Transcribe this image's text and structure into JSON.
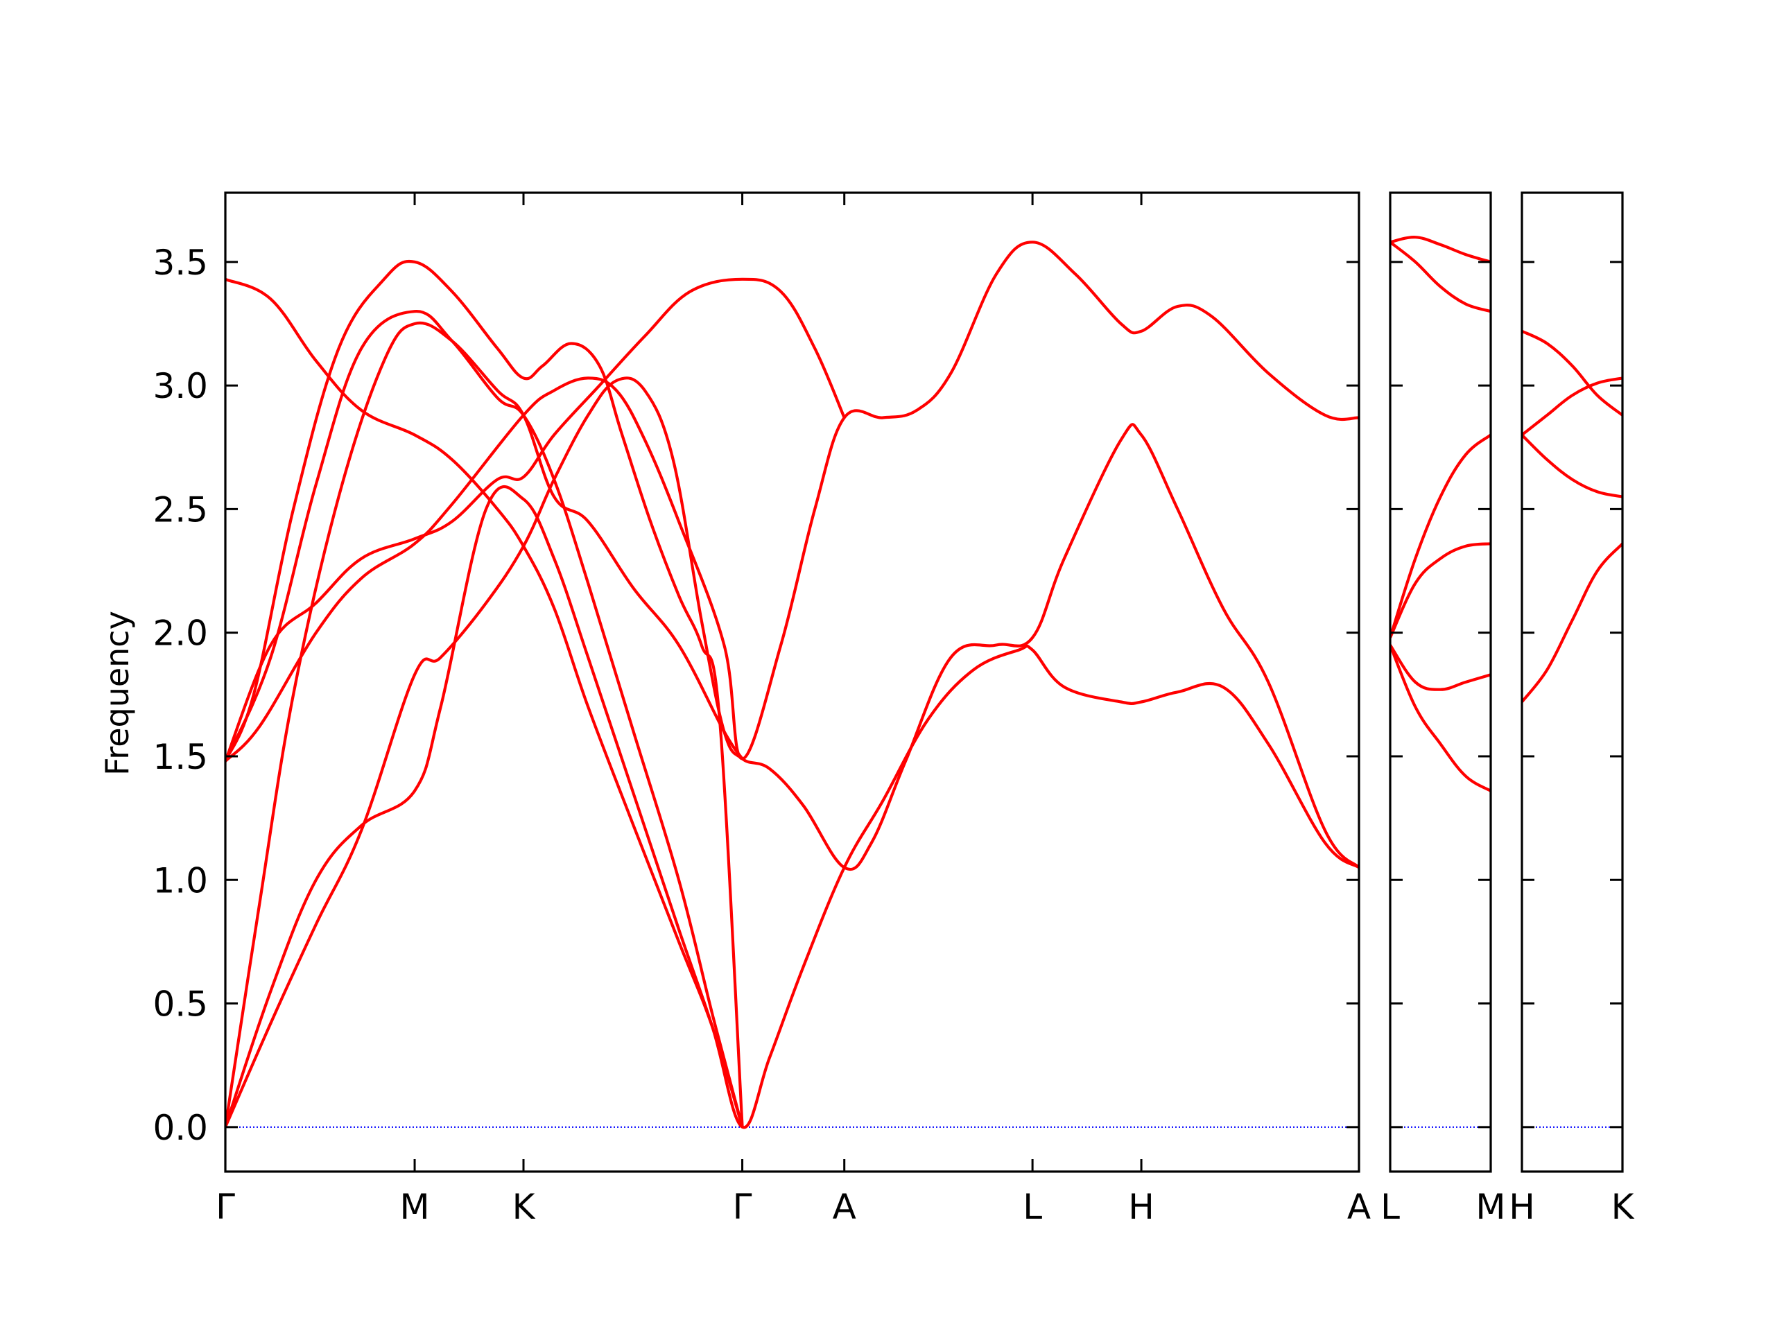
{
  "chart_data": {
    "type": "line",
    "title": "",
    "xlabel": "",
    "ylabel": "Frequency",
    "ylim": [
      -0.18,
      3.78
    ],
    "yticks": [
      "0.0",
      "0.5",
      "1.0",
      "1.5",
      "2.0",
      "2.5",
      "3.0",
      "3.5"
    ],
    "grid": false,
    "legend": "none",
    "colors": {
      "bands": "#ff0000",
      "zero_line": "#0000ff",
      "axes": "#000000"
    },
    "panels": [
      {
        "xlim": [
          0,
          1000
        ],
        "ticks": [
          {
            "x": 0,
            "label": "Γ"
          },
          {
            "x": 167,
            "label": "M"
          },
          {
            "x": 263,
            "label": "K"
          },
          {
            "x": 456,
            "label": "Γ"
          },
          {
            "x": 546,
            "label": "A"
          },
          {
            "x": 712,
            "label": "L"
          },
          {
            "x": 808,
            "label": "H"
          },
          {
            "x": 1000,
            "label": "A"
          }
        ],
        "bands": [
          [
            [
              0,
              0
            ],
            [
              40,
              0.42
            ],
            [
              80,
              0.82
            ],
            [
              120,
              1.2
            ],
            [
              167,
              1.83
            ],
            [
              190,
              1.9
            ],
            [
              230,
              2.12
            ],
            [
              263,
              2.35
            ],
            [
              290,
              2.62
            ],
            [
              320,
              2.88
            ],
            [
              345,
              3.02
            ],
            [
              370,
              2.98
            ],
            [
              395,
              2.7
            ],
            [
              420,
              2.05
            ],
            [
              440,
              1.6
            ],
            [
              456,
              1.49
            ],
            [
              480,
              1.45
            ],
            [
              510,
              1.3
            ],
            [
              546,
              1.05
            ],
            [
              570,
              1.15
            ],
            [
              600,
              1.48
            ],
            [
              640,
              1.9
            ],
            [
              680,
              1.95
            ],
            [
              712,
              1.98
            ],
            [
              740,
              2.3
            ],
            [
              790,
              2.78
            ],
            [
              808,
              2.8
            ],
            [
              840,
              2.5
            ],
            [
              880,
              2.1
            ],
            [
              920,
              1.8
            ],
            [
              970,
              1.2
            ],
            [
              1000,
              1.05
            ]
          ],
          [
            [
              0,
              0
            ],
            [
              40,
              0.55
            ],
            [
              80,
              1.0
            ],
            [
              120,
              1.22
            ],
            [
              167,
              1.36
            ],
            [
              190,
              1.7
            ],
            [
              230,
              2.5
            ],
            [
              263,
              2.54
            ],
            [
              290,
              2.3
            ],
            [
              320,
              1.9
            ],
            [
              360,
              1.35
            ],
            [
              400,
              0.8
            ],
            [
              430,
              0.4
            ],
            [
              456,
              0
            ],
            [
              480,
              0.28
            ],
            [
              510,
              0.65
            ],
            [
              546,
              1.05
            ],
            [
              580,
              1.32
            ],
            [
              620,
              1.65
            ],
            [
              660,
              1.85
            ],
            [
              700,
              1.93
            ],
            [
              712,
              1.93
            ],
            [
              740,
              1.78
            ],
            [
              790,
              1.72
            ],
            [
              808,
              1.72
            ],
            [
              840,
              1.76
            ],
            [
              880,
              1.78
            ],
            [
              920,
              1.55
            ],
            [
              970,
              1.15
            ],
            [
              1000,
              1.05
            ]
          ],
          [
            [
              0,
              1.48
            ],
            [
              30,
              1.62
            ],
            [
              80,
              2.0
            ],
            [
              120,
              2.22
            ],
            [
              167,
              2.36
            ],
            [
              200,
              2.52
            ],
            [
              263,
              2.88
            ],
            [
              290,
              2.98
            ],
            [
              320,
              3.03
            ],
            [
              345,
              2.98
            ],
            [
              370,
              2.78
            ],
            [
              400,
              2.45
            ],
            [
              440,
              1.95
            ],
            [
              456,
              1.49
            ],
            [
              490,
              1.95
            ],
            [
              520,
              2.5
            ],
            [
              546,
              2.87
            ],
            [
              580,
              2.87
            ],
            [
              610,
              2.9
            ],
            [
              640,
              3.05
            ],
            [
              680,
              3.45
            ],
            [
              712,
              3.58
            ],
            [
              750,
              3.45
            ],
            [
              790,
              3.25
            ],
            [
              808,
              3.22
            ],
            [
              840,
              3.32
            ],
            [
              870,
              3.28
            ],
            [
              920,
              3.05
            ],
            [
              970,
              2.88
            ],
            [
              1000,
              2.87
            ]
          ],
          [
            [
              0,
              1.48
            ],
            [
              40,
              1.9
            ],
            [
              80,
              2.6
            ],
            [
              120,
              3.15
            ],
            [
              167,
              3.3
            ],
            [
              200,
              3.18
            ],
            [
              240,
              2.95
            ],
            [
              263,
              2.88
            ],
            [
              290,
              2.62
            ],
            [
              320,
              2.2
            ],
            [
              360,
              1.6
            ],
            [
              400,
              1.0
            ],
            [
              430,
              0.45
            ],
            [
              456,
              0
            ]
          ],
          [
            [
              0,
              1.48
            ],
            [
              25,
              1.75
            ],
            [
              60,
              2.5
            ],
            [
              100,
              3.15
            ],
            [
              140,
              3.43
            ],
            [
              167,
              3.5
            ],
            [
              200,
              3.38
            ],
            [
              240,
              3.15
            ],
            [
              263,
              3.03
            ],
            [
              280,
              3.08
            ],
            [
              305,
              3.17
            ],
            [
              330,
              3.08
            ],
            [
              350,
              2.8
            ],
            [
              375,
              2.45
            ],
            [
              400,
              2.15
            ],
            [
              420,
              1.95
            ],
            [
              436,
              1.65
            ],
            [
              456,
              0
            ]
          ],
          [
            [
              0,
              3.43
            ],
            [
              40,
              3.35
            ],
            [
              80,
              3.1
            ],
            [
              120,
              2.9
            ],
            [
              167,
              2.8
            ],
            [
              200,
              2.7
            ],
            [
              240,
              2.5
            ],
            [
              263,
              2.35
            ],
            [
              290,
              2.1
            ],
            [
              320,
              1.7
            ],
            [
              360,
              1.22
            ],
            [
              400,
              0.75
            ],
            [
              430,
              0.4
            ],
            [
              456,
              0
            ]
          ],
          [
            [
              0,
              0
            ],
            [
              30,
              0.9
            ],
            [
              60,
              1.75
            ],
            [
              100,
              2.55
            ],
            [
              140,
              3.1
            ],
            [
              167,
              3.25
            ],
            [
              200,
              3.18
            ],
            [
              240,
              2.98
            ],
            [
              263,
              2.88
            ],
            [
              290,
              2.55
            ],
            [
              320,
              2.45
            ],
            [
              360,
              2.18
            ],
            [
              400,
              1.95
            ],
            [
              440,
              1.6
            ],
            [
              456,
              1.49
            ]
          ],
          [
            [
              0,
              1.48
            ],
            [
              40,
              1.95
            ],
            [
              80,
              2.12
            ],
            [
              120,
              2.3
            ],
            [
              167,
              2.38
            ],
            [
              200,
              2.45
            ],
            [
              240,
              2.62
            ],
            [
              263,
              2.63
            ],
            [
              290,
              2.8
            ],
            [
              330,
              3.0
            ],
            [
              370,
              3.2
            ],
            [
              410,
              3.38
            ],
            [
              456,
              3.43
            ],
            [
              490,
              3.38
            ],
            [
              520,
              3.15
            ],
            [
              546,
              2.87
            ]
          ]
        ]
      },
      {
        "xlim": [
          0,
          1
        ],
        "ticks": [
          {
            "x": 0,
            "label": "L"
          },
          {
            "x": 1,
            "label": "M"
          }
        ],
        "bands": [
          [
            [
              0,
              3.58
            ],
            [
              0.25,
              3.6
            ],
            [
              0.5,
              3.57
            ],
            [
              0.75,
              3.53
            ],
            [
              1,
              3.5
            ]
          ],
          [
            [
              0,
              3.58
            ],
            [
              0.25,
              3.5
            ],
            [
              0.5,
              3.4
            ],
            [
              0.75,
              3.33
            ],
            [
              1,
              3.3
            ]
          ],
          [
            [
              0,
              1.98
            ],
            [
              0.25,
              2.3
            ],
            [
              0.5,
              2.55
            ],
            [
              0.75,
              2.72
            ],
            [
              1,
              2.8
            ]
          ],
          [
            [
              0,
              1.98
            ],
            [
              0.25,
              2.2
            ],
            [
              0.5,
              2.3
            ],
            [
              0.75,
              2.35
            ],
            [
              1,
              2.36
            ]
          ],
          [
            [
              0,
              1.95
            ],
            [
              0.25,
              1.8
            ],
            [
              0.5,
              1.77
            ],
            [
              0.75,
              1.8
            ],
            [
              1,
              1.83
            ]
          ],
          [
            [
              0,
              1.95
            ],
            [
              0.25,
              1.7
            ],
            [
              0.5,
              1.55
            ],
            [
              0.75,
              1.42
            ],
            [
              1,
              1.36
            ]
          ]
        ]
      },
      {
        "xlim": [
          0,
          1
        ],
        "ticks": [
          {
            "x": 0,
            "label": "H"
          },
          {
            "x": 1,
            "label": "K"
          }
        ],
        "bands": [
          [
            [
              0,
              3.22
            ],
            [
              0.25,
              3.17
            ],
            [
              0.5,
              3.08
            ],
            [
              0.75,
              2.96
            ],
            [
              1,
              2.88
            ]
          ],
          [
            [
              0,
              2.8
            ],
            [
              0.25,
              2.88
            ],
            [
              0.5,
              2.96
            ],
            [
              0.75,
              3.01
            ],
            [
              1,
              3.03
            ]
          ],
          [
            [
              0,
              2.8
            ],
            [
              0.25,
              2.7
            ],
            [
              0.5,
              2.62
            ],
            [
              0.75,
              2.57
            ],
            [
              1,
              2.55
            ]
          ],
          [
            [
              0,
              1.72
            ],
            [
              0.25,
              1.85
            ],
            [
              0.5,
              2.05
            ],
            [
              0.75,
              2.25
            ],
            [
              1,
              2.36
            ]
          ]
        ]
      }
    ]
  }
}
